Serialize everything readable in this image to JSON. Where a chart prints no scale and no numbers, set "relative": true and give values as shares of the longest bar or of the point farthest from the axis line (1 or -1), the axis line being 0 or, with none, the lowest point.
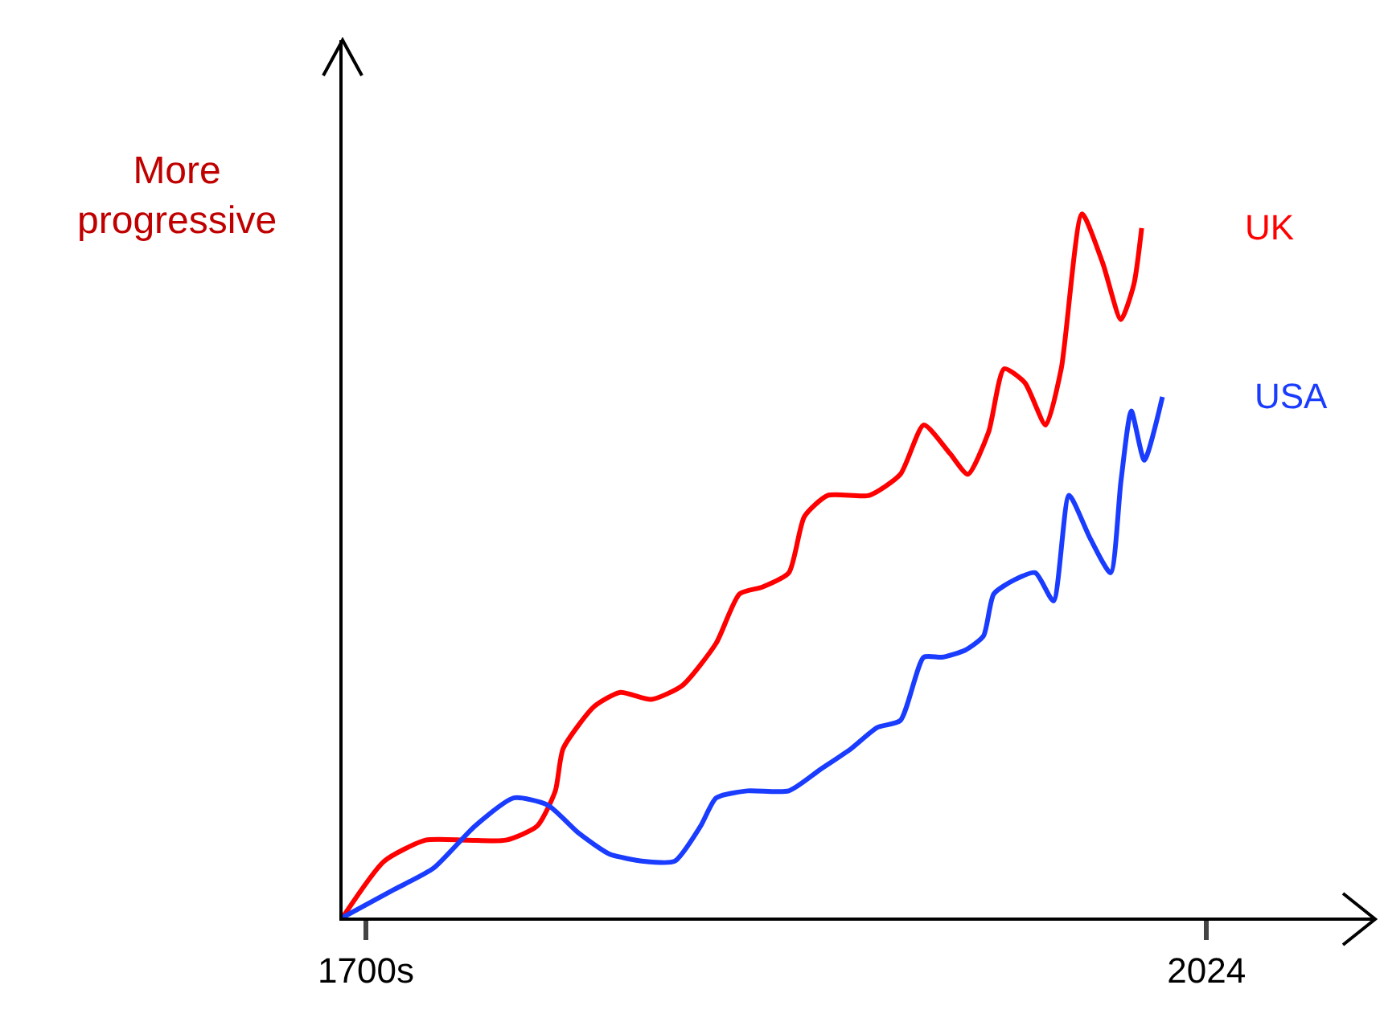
{
  "chart_data": {
    "type": "line",
    "ylabel": "More progressive",
    "relative": true,
    "legend": false,
    "grid": false,
    "marker": "none",
    "line_style": "solid",
    "xlim": [
      1691,
      2089
    ],
    "xticks": [
      {
        "value": 1700,
        "label": "1700s"
      },
      2024
    ],
    "series": [
      {
        "name": "UK",
        "color": "#ff0000",
        "x": [
          1691,
          1707,
          1723,
          1739,
          1754,
          1766,
          1773,
          1776,
          1788,
          1798,
          1810,
          1822,
          1835,
          1844,
          1853,
          1863,
          1869,
          1878,
          1894,
          1906,
          1915,
          1925,
          1932,
          1940,
          1946,
          1954,
          1962,
          1968,
          1976,
          1984,
          1991,
          1996,
          1999
        ],
        "values": [
          0,
          0.08,
          0.11,
          0.11,
          0.11,
          0.13,
          0.18,
          0.24,
          0.3,
          0.32,
          0.31,
          0.33,
          0.39,
          0.46,
          0.47,
          0.49,
          0.57,
          0.6,
          0.6,
          0.63,
          0.7,
          0.66,
          0.63,
          0.69,
          0.78,
          0.76,
          0.7,
          0.78,
          1,
          0.93,
          0.85,
          0.9,
          0.98
        ]
      },
      {
        "name": "USA",
        "color": "#1a3cff",
        "x": [
          1691,
          1711,
          1726,
          1742,
          1757,
          1770,
          1782,
          1794,
          1807,
          1819,
          1829,
          1835,
          1847,
          1863,
          1875,
          1887,
          1897,
          1906,
          1915,
          1922,
          1931,
          1938,
          1942,
          1950,
          1958,
          1965,
          1971,
          1979,
          1987,
          1991,
          1995,
          2000,
          2007
        ],
        "values": [
          0,
          0.04,
          0.07,
          0.13,
          0.17,
          0.16,
          0.12,
          0.09,
          0.08,
          0.08,
          0.13,
          0.17,
          0.18,
          0.18,
          0.21,
          0.24,
          0.27,
          0.28,
          0.37,
          0.37,
          0.38,
          0.4,
          0.46,
          0.48,
          0.49,
          0.45,
          0.6,
          0.54,
          0.49,
          0.62,
          0.72,
          0.65,
          0.74
        ]
      }
    ]
  }
}
